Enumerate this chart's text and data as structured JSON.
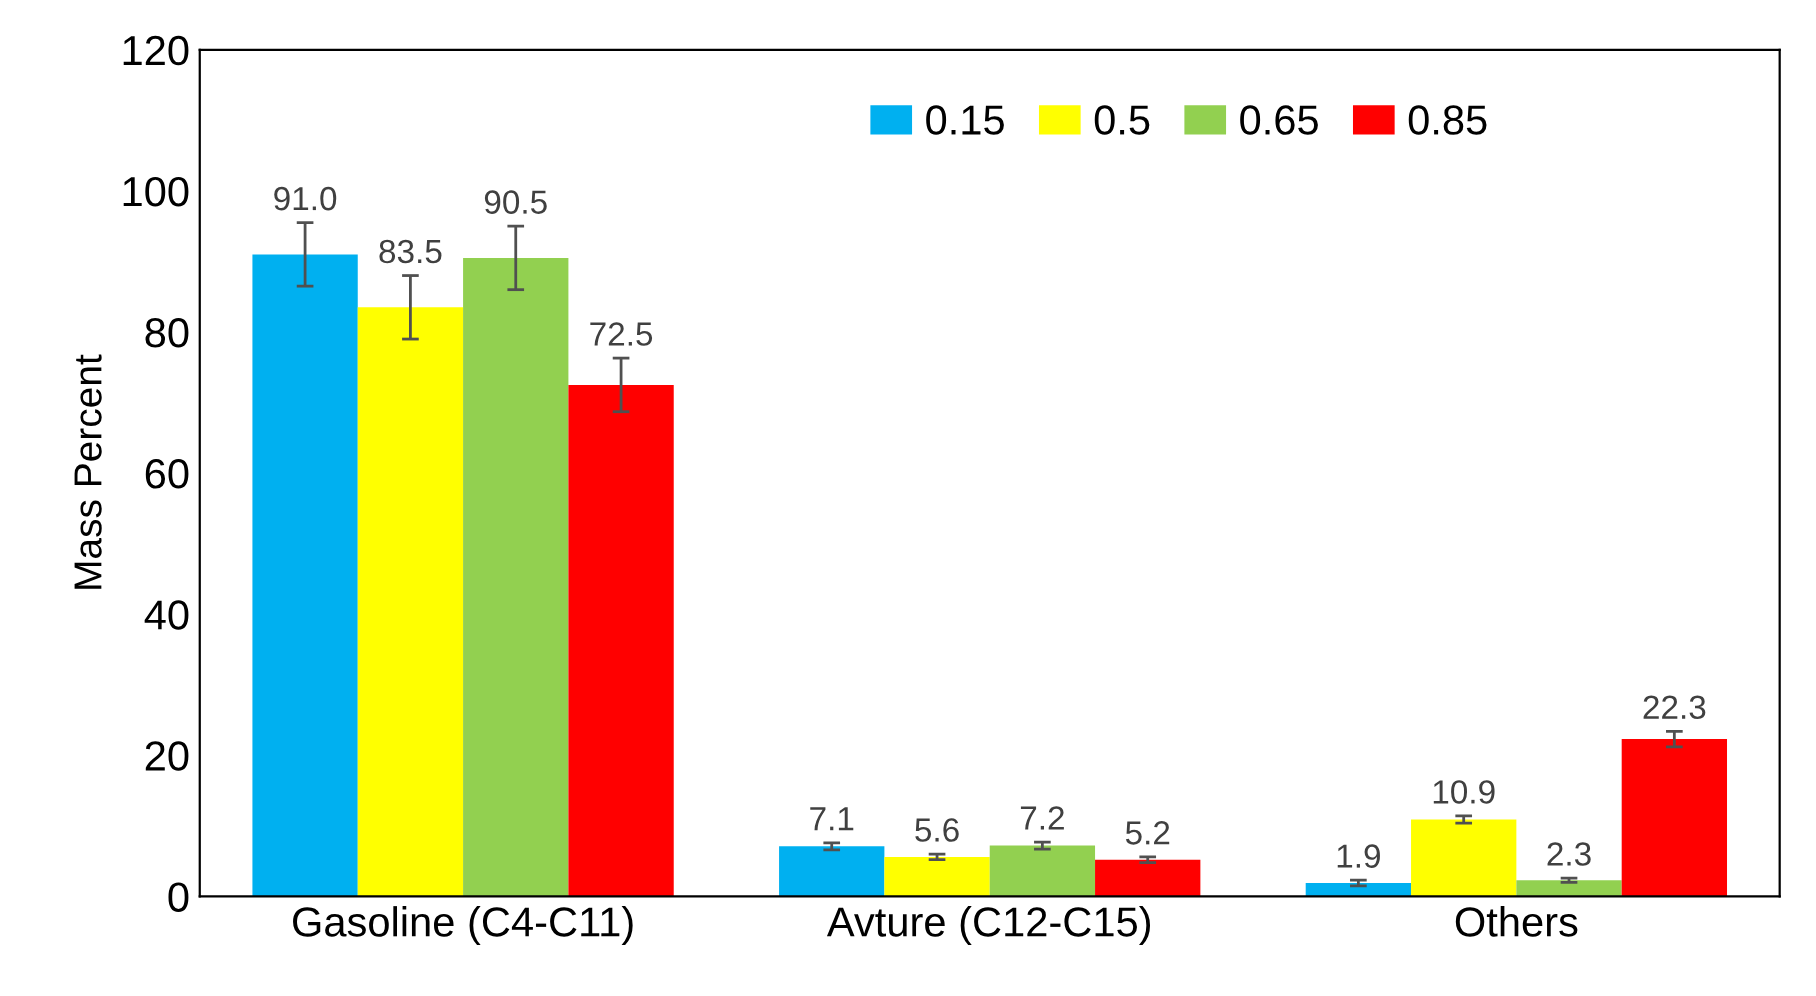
{
  "chart_data": {
    "type": "bar",
    "ylabel": "Mass Percent",
    "categories": [
      "Gasoline (C4-C11)",
      "Avture (C12-C15)",
      "Others"
    ],
    "series": [
      {
        "name": "0.15",
        "color": "#00b0f0",
        "values": [
          91.0,
          7.1,
          1.9
        ],
        "errors": [
          4.5,
          0.5,
          0.4
        ],
        "value_labels": [
          "91.0",
          "7.1",
          "1.9"
        ]
      },
      {
        "name": "0.5",
        "color": "#ffff00",
        "values": [
          83.5,
          5.6,
          10.9
        ],
        "errors": [
          4.5,
          0.4,
          0.5
        ],
        "value_labels": [
          "83.5",
          "5.6",
          "10.9"
        ]
      },
      {
        "name": "0.65",
        "color": "#92d050",
        "values": [
          90.5,
          7.2,
          2.3
        ],
        "errors": [
          4.5,
          0.5,
          0.3
        ],
        "value_labels": [
          "90.5",
          "7.2",
          "2.3"
        ]
      },
      {
        "name": "0.85",
        "color": "#ff0000",
        "values": [
          72.5,
          5.2,
          22.3
        ],
        "errors": [
          3.8,
          0.4,
          1.1
        ],
        "value_labels": [
          "72.5",
          "5.2",
          "22.3"
        ]
      }
    ],
    "ylim": [
      0,
      120
    ],
    "yticks": [
      0,
      20,
      40,
      60,
      80,
      100,
      120
    ],
    "legend": "top right",
    "grid": false
  }
}
